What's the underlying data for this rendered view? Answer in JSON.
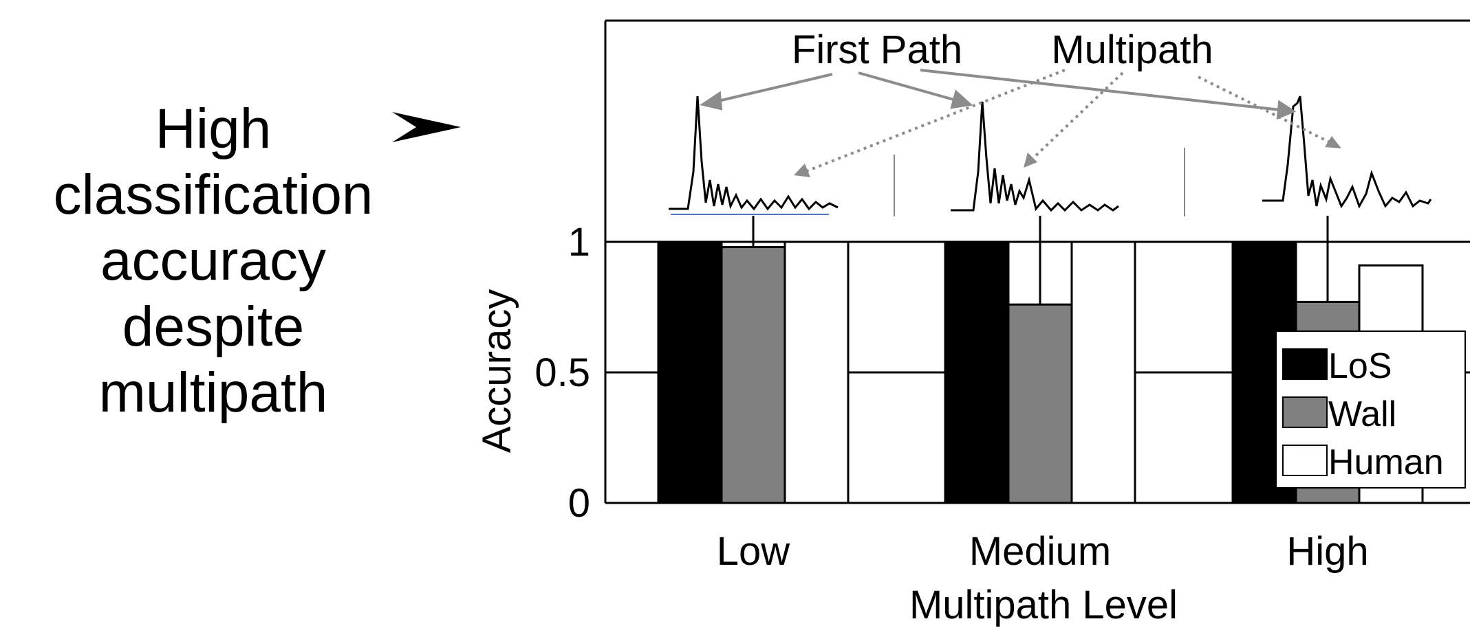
{
  "caption": {
    "lines": [
      "High",
      "classification",
      "accuracy",
      "despite",
      "multipath"
    ]
  },
  "arrow_icon": "right-pointing-triangle-arrow",
  "annotations": {
    "first_path": "First Path",
    "multipath": "Multipath"
  },
  "colors": {
    "LoS": "#000000",
    "Wall": "#808080",
    "Human": "#ffffff"
  },
  "chart_data": {
    "type": "bar",
    "xlabel": "Multipath Level",
    "ylabel": "Accuracy",
    "ylim": [
      0,
      1
    ],
    "yticks": [
      "0",
      "0.5",
      "1"
    ],
    "categories": [
      "Low",
      "Medium",
      "High"
    ],
    "series": [
      {
        "name": "LoS",
        "values": [
          1.0,
          1.0,
          1.0
        ]
      },
      {
        "name": "Wall",
        "values": [
          0.98,
          0.76,
          0.77
        ]
      },
      {
        "name": "Human",
        "values": [
          1.0,
          1.0,
          0.91
        ]
      }
    ],
    "error_bars": [
      {
        "category": "Low",
        "series": "Wall",
        "upper": 1.1
      },
      {
        "category": "Medium",
        "series": "Wall",
        "upper": 1.1
      },
      {
        "category": "High",
        "series": "Wall",
        "upper": 1.1
      }
    ],
    "grid": "horizontal",
    "legend_position": "bottom-right"
  }
}
